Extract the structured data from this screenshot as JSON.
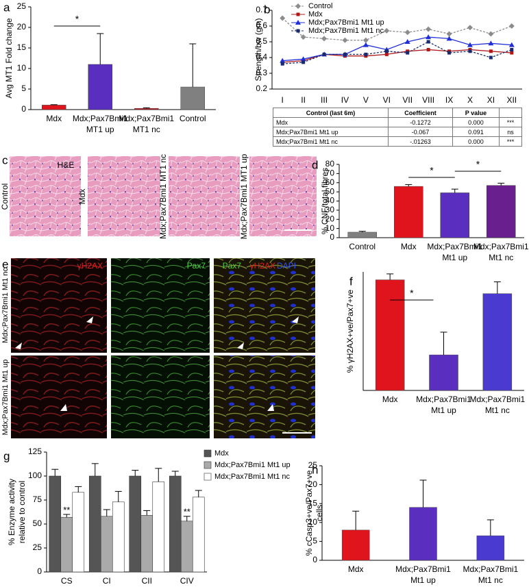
{
  "chart_data": [
    {
      "label": "a",
      "type": "bar",
      "ylabel": [
        "Avg MT1 Fold change"
      ],
      "categories": [
        [
          "Mdx"
        ],
        [
          "Mdx;Pax7Bmi1",
          "MT1 up"
        ],
        [
          "Mdx;Pax7Bmi1",
          "MT1 nc"
        ],
        [
          "Control"
        ]
      ],
      "values": [
        1.1,
        11,
        0.3,
        5.5
      ],
      "errors": [
        0.1,
        7.5,
        0.15,
        10.5
      ],
      "colors": [
        "#e0141c",
        "#5a2fc0",
        "#c01820",
        "#808080"
      ],
      "ylim": [
        0,
        25
      ],
      "yticks": [
        0,
        5,
        10,
        15,
        20,
        25
      ],
      "annotations": [
        "*"
      ]
    },
    {
      "label": "b",
      "type": "line",
      "ylabel": [
        "Strength/bw (gm)"
      ],
      "categories": [
        "I",
        "II",
        "III",
        "IV",
        "V",
        "VI",
        "VII",
        "VIII",
        "IX",
        "X",
        "XI",
        "XII"
      ],
      "ylim": [
        0.2,
        0.7
      ],
      "yticks": [
        0.2,
        0.3,
        0.4,
        0.5,
        0.6,
        0.7
      ],
      "series": [
        {
          "name": "Control",
          "color": "#8c8c8c",
          "marker": "diamond",
          "dashed": true,
          "values": [
            0.65,
            0.53,
            0.52,
            0.51,
            0.51,
            0.57,
            0.56,
            0.58,
            0.55,
            0.59,
            0.55,
            0.6
          ]
        },
        {
          "name": "Mdx",
          "color": "#b01818",
          "marker": "square",
          "dashed": false,
          "values": [
            0.37,
            0.38,
            0.42,
            0.41,
            0.41,
            0.42,
            0.44,
            0.45,
            0.44,
            0.45,
            0.44,
            0.43
          ]
        },
        {
          "name": "Mdx;Pax7Bmi1 Mt1 up",
          "color": "#1f2fd8",
          "marker": "triangle",
          "dashed": false,
          "values": [
            0.38,
            0.39,
            0.42,
            0.42,
            0.48,
            0.45,
            0.5,
            0.53,
            0.52,
            0.48,
            0.49,
            0.48
          ]
        },
        {
          "name": "Mdx;Pax7Bmi1 Mt1 nc",
          "color": "#1a2a6e",
          "marker": "square",
          "dashed": true,
          "values": [
            0.36,
            0.37,
            0.42,
            0.42,
            0.42,
            0.44,
            0.43,
            0.5,
            0.43,
            0.44,
            0.4,
            0.45
          ]
        }
      ]
    },
    {
      "label": "d",
      "type": "bar",
      "ylabel": [
        "% CNF/total fibres"
      ],
      "categories": [
        [
          "Control"
        ],
        [
          "Mdx"
        ],
        [
          "Mdx;Pax7Bmi1",
          "Mt1 up"
        ],
        [
          "Mdx;Pax7Bmi1",
          "Mt1 nc"
        ]
      ],
      "values": [
        6,
        56,
        49,
        57
      ],
      "errors": [
        1,
        2,
        4,
        2.5
      ],
      "colors": [
        "#808080",
        "#e0141c",
        "#5a2fc0",
        "#6a1f8f"
      ],
      "ylim": [
        0,
        80
      ],
      "yticks": [
        0,
        10,
        20,
        30,
        40,
        50,
        60,
        70,
        80
      ],
      "annotations": [
        "*",
        "*"
      ]
    },
    {
      "label": "f",
      "type": "bar",
      "ylabel": [
        "% γH2AX+ve/Pax7+ve"
      ],
      "categories": [
        [
          "Mdx"
        ],
        [
          "Mdx;Pax7Bmi1",
          "Mt1 up"
        ],
        [
          "Mdx;Pax7Bmi1",
          "Mt1 nc"
        ]
      ],
      "values": [
        56,
        18,
        49
      ],
      "errors": [
        3,
        11.5,
        6
      ],
      "colors": [
        "#e0141c",
        "#5a2fc0",
        "#4a3ad0"
      ],
      "ylim": [
        0,
        60
      ],
      "yticks": [],
      "annotations": [
        "*"
      ]
    },
    {
      "label": "g",
      "type": "bar",
      "ylabel": [
        "% Enzyme activity",
        "relative to control"
      ],
      "categories": [
        [
          "CS"
        ],
        [
          "CI"
        ],
        [
          "CII"
        ],
        [
          "CIV"
        ]
      ],
      "ylim": [
        0,
        125
      ],
      "yticks": [
        0,
        25,
        50,
        75,
        100,
        125
      ],
      "legend": "top-right",
      "series": [
        {
          "name": "Mdx",
          "color": "#555555",
          "values": [
            100,
            100,
            100,
            100
          ],
          "errors": [
            7,
            13,
            6,
            5
          ]
        },
        {
          "name": "Mdx;Pax7Bmi1 Mt1 up",
          "color": "#aaaaaa",
          "values": [
            57,
            58,
            59,
            53
          ],
          "errors": [
            3,
            7,
            5,
            5
          ]
        },
        {
          "name": "Mdx;Pax7Bmi1 Mt1 nc",
          "color": "#ffffff",
          "values": [
            83,
            73,
            94,
            78
          ],
          "errors": [
            6,
            11,
            14,
            7
          ]
        }
      ],
      "annotations": [
        "**",
        "**"
      ]
    },
    {
      "label": "h",
      "type": "bar",
      "ylabel": [
        "% cCasp3+ve/Pax7+ve",
        "cells"
      ],
      "categories": [
        [
          "Mdx"
        ],
        [
          "Mdx;Pax7Bmi1",
          "Mt1 up"
        ],
        [
          "Mdx;Pax7Bmi1",
          "Mt1 nc"
        ]
      ],
      "values": [
        8,
        14,
        6.5
      ],
      "errors": [
        5,
        7.2,
        4.2
      ],
      "colors": [
        "#e0141c",
        "#5a2fc0",
        "#4a3ad0"
      ],
      "ylim": [
        0,
        25
      ],
      "yticks": [
        0,
        5,
        10,
        15,
        20,
        25
      ]
    }
  ],
  "table": {
    "header": [
      "Control (last 6m)",
      "Coefficient",
      "P value"
    ],
    "rows": [
      [
        "Mdx",
        "-0.1272",
        "0.000",
        "***"
      ],
      [
        "Mdx;Pax7Bmi1 Mt1 up",
        "-0.067",
        "0.091",
        "ns"
      ],
      [
        "Mdx;Pax7Bmi1 Mt1 nc",
        "-.01263",
        "0.000",
        "***"
      ]
    ]
  },
  "panel_c": {
    "label": "c",
    "stain": "H&E",
    "samples": [
      "Control",
      "Mdx",
      "Mdx;Pax7Bmi1 MT1 nc",
      "Mdx;Pax7Bmi1 MT1 up"
    ]
  },
  "panel_e": {
    "label": "e",
    "channels": [
      "γH2AX",
      "Pax7"
    ],
    "merged": [
      "Pax7",
      "γH2AX",
      "DAPI"
    ],
    "rows": [
      "Mdx;Pax7Bmi1 Mt1 nc",
      "Mdx;Pax7Bmi1 Mt1 up"
    ]
  }
}
